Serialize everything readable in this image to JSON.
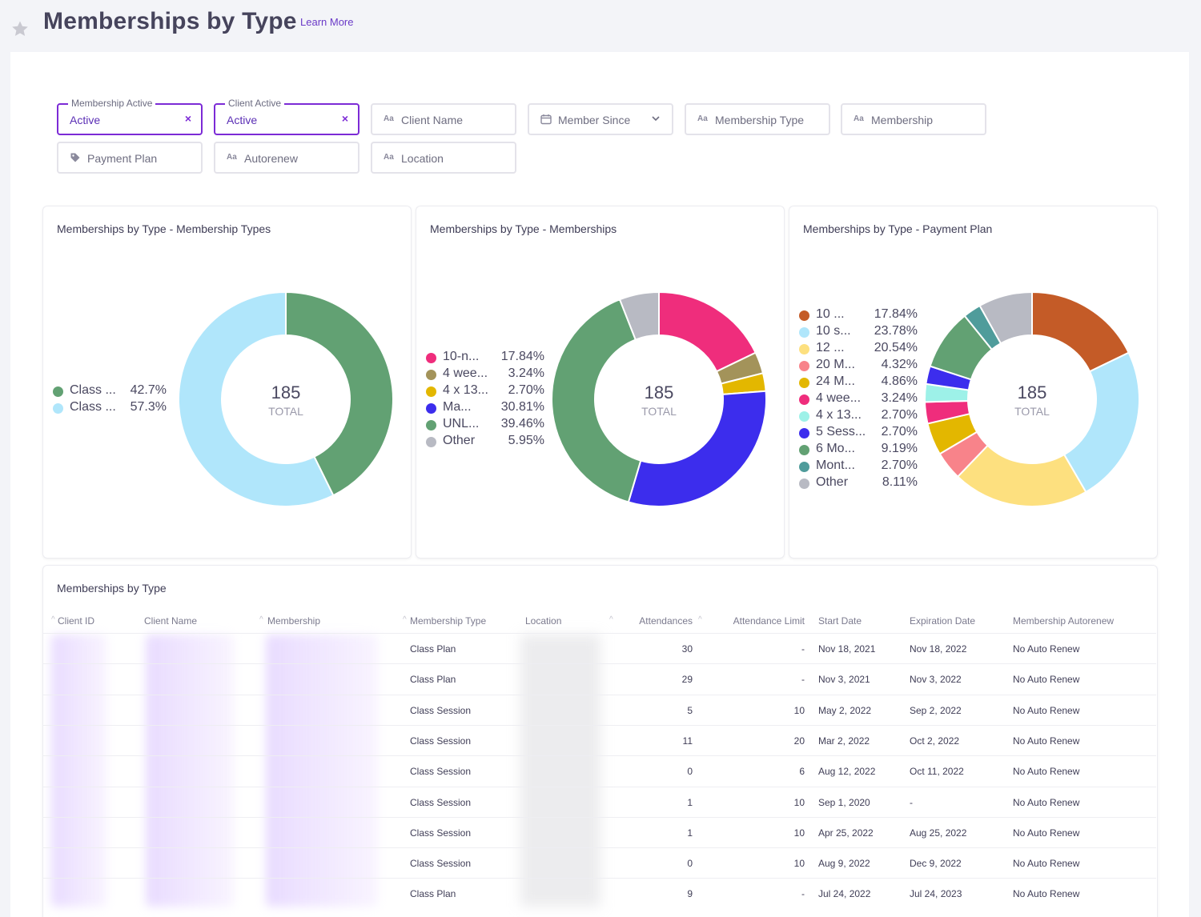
{
  "page": {
    "title": "Memberships by Type",
    "learn_more": "Learn More"
  },
  "filters": {
    "membership_active": {
      "label": "Membership Active",
      "value": "Active",
      "clear": "×"
    },
    "client_active": {
      "label": "Client Active",
      "value": "Active",
      "clear": "×"
    },
    "client_name": {
      "icon": "text-icon",
      "glyph": "Aa",
      "placeholder": "Client Name"
    },
    "member_since": {
      "icon": "calendar-icon",
      "placeholder": "Member Since"
    },
    "membership_type": {
      "icon": "text-icon",
      "glyph": "Aa",
      "placeholder": "Membership Type"
    },
    "membership": {
      "icon": "text-icon",
      "glyph": "Aa",
      "placeholder": "Membership"
    },
    "payment_plan": {
      "icon": "tag-icon",
      "placeholder": "Payment Plan"
    },
    "autorenew": {
      "icon": "text-icon",
      "glyph": "Aa",
      "placeholder": "Autorenew"
    },
    "location": {
      "icon": "text-icon",
      "glyph": "Aa",
      "placeholder": "Location"
    }
  },
  "chart_data": [
    {
      "type": "pie",
      "title": "Memberships by Type - Membership Types",
      "total": "185",
      "total_label": "TOTAL",
      "slices": [
        {
          "label": "Class ...",
          "value": 42.7,
          "display": "42.7%",
          "color": "#62a173"
        },
        {
          "label": "Class ...",
          "value": 57.3,
          "display": "57.3%",
          "color": "#b0e6fb"
        }
      ]
    },
    {
      "type": "pie",
      "title": "Memberships by Type - Memberships",
      "total": "185",
      "total_label": "TOTAL",
      "slices": [
        {
          "label": "10-n...",
          "value": 17.84,
          "display": "17.84%",
          "color": "#ef2d7c"
        },
        {
          "label": "4 wee...",
          "value": 3.24,
          "display": "3.24%",
          "color": "#a3935a"
        },
        {
          "label": "4 x 13...",
          "value": 2.7,
          "display": "2.70%",
          "color": "#e3b700"
        },
        {
          "label": "Ma...",
          "value": 30.81,
          "display": "30.81%",
          "color": "#3c2ded"
        },
        {
          "label": "UNL...",
          "value": 39.46,
          "display": "39.46%",
          "color": "#62a173"
        },
        {
          "label": "Other",
          "value": 5.95,
          "display": "5.95%",
          "color": "#b8bac3"
        }
      ]
    },
    {
      "type": "pie",
      "title": "Memberships by Type - Payment Plan",
      "total": "185",
      "total_label": "TOTAL",
      "slices": [
        {
          "label": "10 ...",
          "value": 17.84,
          "display": "17.84%",
          "color": "#c45b27"
        },
        {
          "label": "10 s...",
          "value": 23.78,
          "display": "23.78%",
          "color": "#b0e6fb"
        },
        {
          "label": "12 ...",
          "value": 20.54,
          "display": "20.54%",
          "color": "#fde07f"
        },
        {
          "label": "20 M...",
          "value": 4.32,
          "display": "4.32%",
          "color": "#f8838a"
        },
        {
          "label": "24 M...",
          "value": 4.86,
          "display": "4.86%",
          "color": "#e3b700"
        },
        {
          "label": "4 wee...",
          "value": 3.24,
          "display": "3.24%",
          "color": "#ef2d7c"
        },
        {
          "label": "4 x 13...",
          "value": 2.7,
          "display": "2.70%",
          "color": "#9df1e8"
        },
        {
          "label": "5 Sess...",
          "value": 2.7,
          "display": "2.70%",
          "color": "#3c2ded"
        },
        {
          "label": "6 Mo...",
          "value": 9.19,
          "display": "9.19%",
          "color": "#62a173"
        },
        {
          "label": "Mont...",
          "value": 2.7,
          "display": "2.70%",
          "color": "#4f9c9b"
        },
        {
          "label": "Other",
          "value": 8.11,
          "display": "8.11%",
          "color": "#b8bac3"
        }
      ]
    }
  ],
  "table": {
    "title": "Memberships by Type",
    "columns": [
      "Client ID",
      "Client Name",
      "Membership",
      "Membership Type",
      "Location",
      "Attendances",
      "Attendance Limit",
      "Start Date",
      "Expiration Date",
      "Membership Autorenew"
    ],
    "sort_glyph": "^",
    "rows": [
      {
        "membership_type": "Class Plan",
        "attendances": "30",
        "limit": "-",
        "start": "Nov 18, 2021",
        "expiration": "Nov 18, 2022",
        "autorenew": "No Auto Renew"
      },
      {
        "membership_type": "Class Plan",
        "attendances": "29",
        "limit": "-",
        "start": "Nov 3, 2021",
        "expiration": "Nov 3, 2022",
        "autorenew": "No Auto Renew"
      },
      {
        "membership_type": "Class Session",
        "attendances": "5",
        "limit": "10",
        "start": "May 2, 2022",
        "expiration": "Sep 2, 2022",
        "autorenew": "No Auto Renew"
      },
      {
        "membership_type": "Class Session",
        "attendances": "11",
        "limit": "20",
        "start": "Mar 2, 2022",
        "expiration": "Oct 2, 2022",
        "autorenew": "No Auto Renew"
      },
      {
        "membership_type": "Class Session",
        "attendances": "0",
        "limit": "6",
        "start": "Aug 12, 2022",
        "expiration": "Oct 11, 2022",
        "autorenew": "No Auto Renew"
      },
      {
        "membership_type": "Class Session",
        "attendances": "1",
        "limit": "10",
        "start": "Sep 1, 2020",
        "expiration": "-",
        "autorenew": "No Auto Renew"
      },
      {
        "membership_type": "Class Session",
        "attendances": "1",
        "limit": "10",
        "start": "Apr 25, 2022",
        "expiration": "Aug 25, 2022",
        "autorenew": "No Auto Renew"
      },
      {
        "membership_type": "Class Session",
        "attendances": "0",
        "limit": "10",
        "start": "Aug 9, 2022",
        "expiration": "Dec 9, 2022",
        "autorenew": "No Auto Renew"
      },
      {
        "membership_type": "Class Plan",
        "attendances": "9",
        "limit": "-",
        "start": "Jul 24, 2022",
        "expiration": "Jul 24, 2023",
        "autorenew": "No Auto Renew"
      }
    ]
  }
}
